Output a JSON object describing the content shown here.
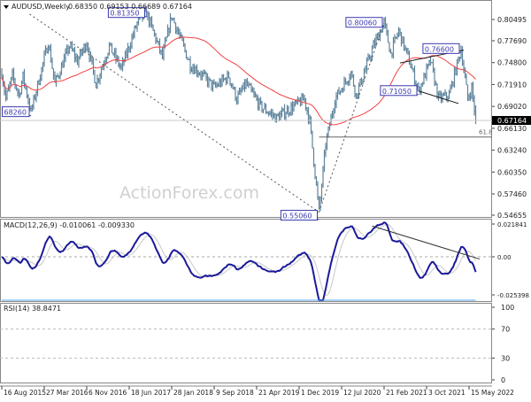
{
  "header": {
    "symbol": "AUDUSD,Weekly",
    "ohlc": "0.68350 0.69153 0.66689 0.67164"
  },
  "watermark": "ActionForex.com",
  "colors": {
    "bars": "#5f849c",
    "ma": "#f04040",
    "macd": "#1a1a9a",
    "signal": "#c8c8c8",
    "rsi": "#5aa8f0",
    "annotation": "#3a3ab0"
  },
  "chart_data": [
    {
      "type": "ohlc-bar",
      "title": "AUDUSD,Weekly",
      "last_ohlc": {
        "open": 0.6835,
        "high": 0.69153,
        "low": 0.66689,
        "close": 0.67164
      },
      "current_price_label": "0.67164",
      "yticks": [
        "0.80495",
        "0.77690",
        "0.74800",
        "0.71910",
        "0.69020",
        "0.66130",
        "0.63240",
        "0.60350",
        "0.57460",
        "0.54655"
      ],
      "ylim": [
        0.54655,
        0.80495
      ],
      "xticks": [
        "16 Aug 2015",
        "27 Mar 2016",
        "6 Nov 2016",
        "18 Jun 2017",
        "28 Jan 2018",
        "9 Sep 2018",
        "21 Apr 2019",
        "1 Dec 2019",
        "12 Jul 2020",
        "21 Feb 2021",
        "3 Oct 2021",
        "15 May 2022"
      ],
      "price_path": [
        [
          "2015-08-16",
          0.735
        ],
        [
          "2015-09-06",
          0.7
        ],
        [
          "2015-10-11",
          0.73
        ],
        [
          "2015-11-15",
          0.705
        ],
        [
          "2015-12-06",
          0.73
        ],
        [
          "2016-01-17",
          0.6826
        ],
        [
          "2016-04-17",
          0.775
        ],
        [
          "2016-05-22",
          0.72
        ],
        [
          "2016-08-07",
          0.77
        ],
        [
          "2016-09-18",
          0.75
        ],
        [
          "2016-11-06",
          0.775
        ],
        [
          "2016-12-25",
          0.72
        ],
        [
          "2017-03-05",
          0.77
        ],
        [
          "2017-05-07",
          0.74
        ],
        [
          "2017-07-30",
          0.8
        ],
        [
          "2017-09-17",
          0.8135
        ],
        [
          "2017-12-10",
          0.755
        ],
        [
          "2018-01-28",
          0.81
        ],
        [
          "2018-05-06",
          0.745
        ],
        [
          "2018-06-24",
          0.735
        ],
        [
          "2018-09-09",
          0.715
        ],
        [
          "2018-11-25",
          0.73
        ],
        [
          "2019-01-06",
          0.7
        ],
        [
          "2019-02-24",
          0.72
        ],
        [
          "2019-05-12",
          0.69
        ],
        [
          "2019-08-04",
          0.675
        ],
        [
          "2019-12-29",
          0.7
        ],
        [
          "2020-01-26",
          0.67
        ],
        [
          "2020-03-15",
          0.5506
        ],
        [
          "2020-04-19",
          0.64
        ],
        [
          "2020-06-07",
          0.7
        ],
        [
          "2020-08-30",
          0.735
        ],
        [
          "2020-09-27",
          0.705
        ],
        [
          "2020-12-27",
          0.77
        ],
        [
          "2021-02-21",
          0.8006
        ],
        [
          "2021-03-28",
          0.76
        ],
        [
          "2021-05-09",
          0.79
        ],
        [
          "2021-07-04",
          0.75
        ],
        [
          "2021-08-22",
          0.7105
        ],
        [
          "2021-10-24",
          0.75
        ],
        [
          "2021-12-05",
          0.7
        ],
        [
          "2022-01-30",
          0.705
        ],
        [
          "2022-04-03",
          0.766
        ],
        [
          "2022-05-08",
          0.7
        ],
        [
          "2022-05-29",
          0.715
        ],
        [
          "2022-06-19",
          0.67164
        ]
      ],
      "moving_average": {
        "period": 55
      },
      "annotations": [
        {
          "label": "0.81350",
          "date": "2017-09-17",
          "price": 0.8135,
          "side": "left"
        },
        {
          "label": "68260",
          "date": "2016-01-17",
          "price": 0.6826,
          "side": "left"
        },
        {
          "label": "0.80060",
          "date": "2021-02-21",
          "price": 0.8006,
          "side": "left"
        },
        {
          "label": "0.76600",
          "date": "2022-04-03",
          "price": 0.766,
          "side": "left"
        },
        {
          "label": "0.71050",
          "date": "2021-08-22",
          "price": 0.7105,
          "side": "left"
        },
        {
          "label": "0.55060",
          "date": "2020-03-15",
          "price": 0.5506,
          "side": "left"
        }
      ],
      "fib_level": {
        "label": "61.8",
        "price": 0.6498,
        "from": "2020-03-15"
      },
      "trendlines": [
        {
          "style": "dotted",
          "from": [
            "2016-01-10",
            0.812
          ],
          "to": [
            "2020-03-15",
            0.5506
          ]
        },
        {
          "style": "dotted",
          "from": [
            "2020-03-15",
            0.5506
          ],
          "to": [
            "2021-02-21",
            0.8006
          ]
        },
        {
          "style": "solid",
          "from": [
            "2021-05-16",
            0.7475
          ],
          "to": [
            "2022-04-17",
            0.7645
          ]
        },
        {
          "style": "solid",
          "from": [
            "2021-08-22",
            0.7105
          ],
          "to": [
            "2022-03-20",
            0.694
          ]
        }
      ]
    },
    {
      "type": "line",
      "title": "MACD(12,26,9) -0.010061 -0.009330",
      "yticks": [
        "0.021841",
        "0.00",
        "-0.025398"
      ],
      "ylim": [
        -0.025398,
        0.021841
      ],
      "params": [
        12,
        26,
        9
      ],
      "trendline": {
        "from": [
          "2020-12-20",
          0.0205
        ],
        "to": [
          "2022-07-10",
          -0.0015
        ]
      }
    },
    {
      "type": "line",
      "title": "RSI(14) 38.8471",
      "yticks": [
        "100",
        "70",
        "30",
        "0"
      ],
      "ylim": [
        0,
        100
      ],
      "period": 14
    }
  ]
}
